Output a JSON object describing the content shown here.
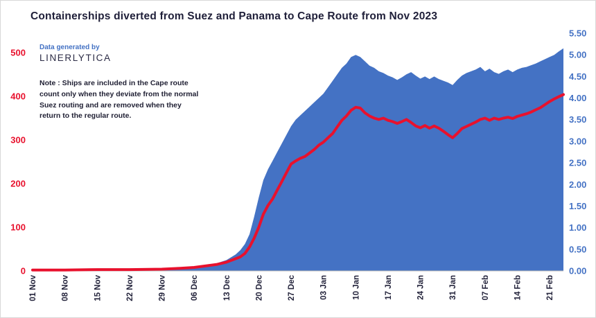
{
  "title": "Containerships diverted from Suez and Panama to Cape Route from Nov 2023",
  "branding": {
    "prefix": "Data generated by",
    "name": "LINERLYTICA"
  },
  "note": "Note : Ships are included in the Cape route count only when they deviate from the normal Suez routing and are removed when they return to the regular route.",
  "colors": {
    "area": "#4472C4",
    "line": "#E8112D",
    "left_axis": "#E8112D",
    "right_axis": "#4472C4",
    "text": "#23233B",
    "baseline": "#b5b5b5"
  },
  "chart_data": {
    "type": "area",
    "title": "Containerships diverted from Suez and Panama to Cape Route from Nov 2023",
    "x_unit": "days since 01 Nov 2023",
    "x_range_days": [
      0,
      115
    ],
    "x_ticks": [
      {
        "day": 0,
        "label": "01 Nov"
      },
      {
        "day": 7,
        "label": "08 Nov"
      },
      {
        "day": 14,
        "label": "15 Nov"
      },
      {
        "day": 21,
        "label": "22 Nov"
      },
      {
        "day": 28,
        "label": "29 Nov"
      },
      {
        "day": 35,
        "label": "06 Dec"
      },
      {
        "day": 42,
        "label": "13 Dec"
      },
      {
        "day": 49,
        "label": "20 Dec"
      },
      {
        "day": 56,
        "label": "27 Dec"
      },
      {
        "day": 63,
        "label": "03 Jan"
      },
      {
        "day": 70,
        "label": "10 Jan"
      },
      {
        "day": 77,
        "label": "17 Jan"
      },
      {
        "day": 84,
        "label": "24 Jan"
      },
      {
        "day": 91,
        "label": "31 Jan"
      },
      {
        "day": 98,
        "label": "07 Feb"
      },
      {
        "day": 105,
        "label": "14 Feb"
      },
      {
        "day": 112,
        "label": "21 Feb"
      }
    ],
    "left_axis": {
      "ticks": [
        0,
        100,
        200,
        300,
        400,
        500
      ],
      "range": [
        0,
        500
      ]
    },
    "right_axis": {
      "ticks": [
        "0.00",
        "0.50",
        "1.00",
        "1.50",
        "2.00",
        "2.50",
        "3.00",
        "3.50",
        "4.00",
        "4.50",
        "5.00",
        "5.50"
      ],
      "range": [
        0,
        5.5
      ]
    },
    "series": [
      {
        "name": "ships-diverted-count",
        "style": "line",
        "axis": "left"
      },
      {
        "name": "diverted-capacity",
        "style": "area",
        "axis": "right"
      }
    ],
    "points_format": [
      "day",
      "ships_left_axis",
      "capacity_right_axis"
    ],
    "points": [
      [
        0,
        2,
        0.02
      ],
      [
        7,
        2,
        0.02
      ],
      [
        14,
        3,
        0.03
      ],
      [
        21,
        3,
        0.03
      ],
      [
        28,
        4,
        0.05
      ],
      [
        32,
        6,
        0.07
      ],
      [
        35,
        8,
        0.1
      ],
      [
        38,
        12,
        0.14
      ],
      [
        40,
        15,
        0.18
      ],
      [
        42,
        20,
        0.25
      ],
      [
        44,
        28,
        0.38
      ],
      [
        45,
        32,
        0.48
      ],
      [
        46,
        40,
        0.62
      ],
      [
        47,
        55,
        0.85
      ],
      [
        48,
        75,
        1.25
      ],
      [
        49,
        100,
        1.7
      ],
      [
        50,
        130,
        2.1
      ],
      [
        51,
        150,
        2.35
      ],
      [
        52,
        165,
        2.55
      ],
      [
        53,
        185,
        2.75
      ],
      [
        54,
        205,
        2.95
      ],
      [
        55,
        225,
        3.15
      ],
      [
        56,
        245,
        3.35
      ],
      [
        57,
        252,
        3.5
      ],
      [
        58,
        258,
        3.6
      ],
      [
        59,
        262,
        3.7
      ],
      [
        60,
        270,
        3.8
      ],
      [
        61,
        278,
        3.9
      ],
      [
        62,
        288,
        4.0
      ],
      [
        63,
        295,
        4.1
      ],
      [
        64,
        305,
        4.25
      ],
      [
        65,
        315,
        4.4
      ],
      [
        66,
        330,
        4.55
      ],
      [
        67,
        345,
        4.7
      ],
      [
        68,
        355,
        4.8
      ],
      [
        69,
        368,
        4.95
      ],
      [
        70,
        375,
        5.0
      ],
      [
        71,
        373,
        4.95
      ],
      [
        72,
        362,
        4.85
      ],
      [
        73,
        355,
        4.75
      ],
      [
        74,
        350,
        4.7
      ],
      [
        75,
        347,
        4.62
      ],
      [
        76,
        350,
        4.58
      ],
      [
        77,
        345,
        4.52
      ],
      [
        78,
        342,
        4.48
      ],
      [
        79,
        338,
        4.42
      ],
      [
        80,
        342,
        4.48
      ],
      [
        81,
        347,
        4.55
      ],
      [
        82,
        340,
        4.6
      ],
      [
        83,
        332,
        4.52
      ],
      [
        84,
        328,
        4.45
      ],
      [
        85,
        333,
        4.5
      ],
      [
        86,
        327,
        4.44
      ],
      [
        87,
        332,
        4.5
      ],
      [
        88,
        327,
        4.44
      ],
      [
        89,
        320,
        4.4
      ],
      [
        90,
        312,
        4.36
      ],
      [
        91,
        305,
        4.3
      ],
      [
        92,
        315,
        4.42
      ],
      [
        93,
        326,
        4.52
      ],
      [
        94,
        331,
        4.58
      ],
      [
        95,
        336,
        4.62
      ],
      [
        96,
        341,
        4.66
      ],
      [
        97,
        347,
        4.72
      ],
      [
        98,
        350,
        4.62
      ],
      [
        99,
        345,
        4.68
      ],
      [
        100,
        350,
        4.6
      ],
      [
        101,
        347,
        4.56
      ],
      [
        102,
        350,
        4.62
      ],
      [
        103,
        352,
        4.66
      ],
      [
        104,
        349,
        4.6
      ],
      [
        105,
        354,
        4.66
      ],
      [
        106,
        357,
        4.7
      ],
      [
        107,
        360,
        4.72
      ],
      [
        108,
        364,
        4.76
      ],
      [
        109,
        369,
        4.8
      ],
      [
        110,
        374,
        4.85
      ],
      [
        111,
        381,
        4.9
      ],
      [
        112,
        388,
        4.95
      ],
      [
        113,
        394,
        5.0
      ],
      [
        114,
        399,
        5.08
      ],
      [
        115,
        404,
        5.15
      ]
    ]
  }
}
